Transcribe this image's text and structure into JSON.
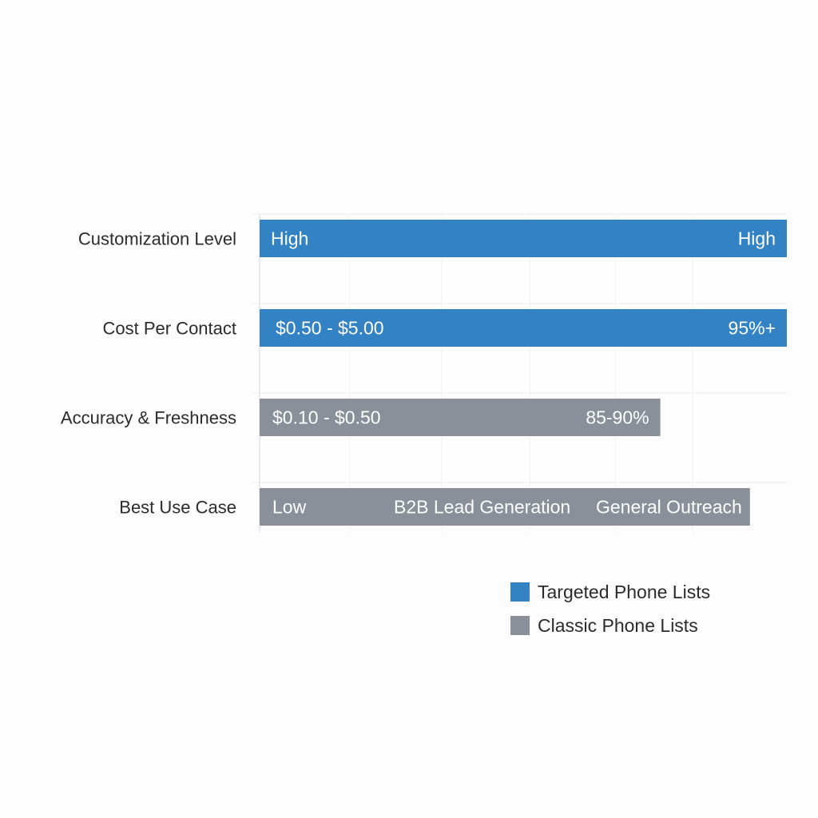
{
  "chart_data": {
    "type": "bar",
    "orientation": "horizontal",
    "categories": [
      "Customization Level",
      "Cost Per Contact",
      "Accuracy & Freshness",
      "Best Use Case"
    ],
    "bars": [
      {
        "category": "Customization Level",
        "series": "Targeted Phone Lists",
        "value": 100,
        "labels": [
          "High",
          "High"
        ]
      },
      {
        "category": "Cost Per Contact",
        "series": "Targeted Phone Lists",
        "value": 100,
        "labels": [
          "$0.50 - $5.00",
          "95%+"
        ]
      },
      {
        "category": "Accuracy & Freshness",
        "series": "Classic Phone Lists",
        "value": 76,
        "labels": [
          "$0.10 - $0.50",
          "85-90%"
        ]
      },
      {
        "category": "Best Use Case",
        "series": "Classic Phone Lists",
        "value": 93,
        "labels": [
          "Low",
          "B2B Lead Generation",
          "General Outreach"
        ]
      }
    ],
    "legend": {
      "placement": "bottom-right",
      "entries": [
        {
          "name": "Targeted Phone Lists",
          "color": "#3282c4"
        },
        {
          "name": "Classic Phone Lists",
          "color": "#8a9099"
        }
      ]
    },
    "xlim": [
      0,
      100
    ],
    "grid": true
  }
}
